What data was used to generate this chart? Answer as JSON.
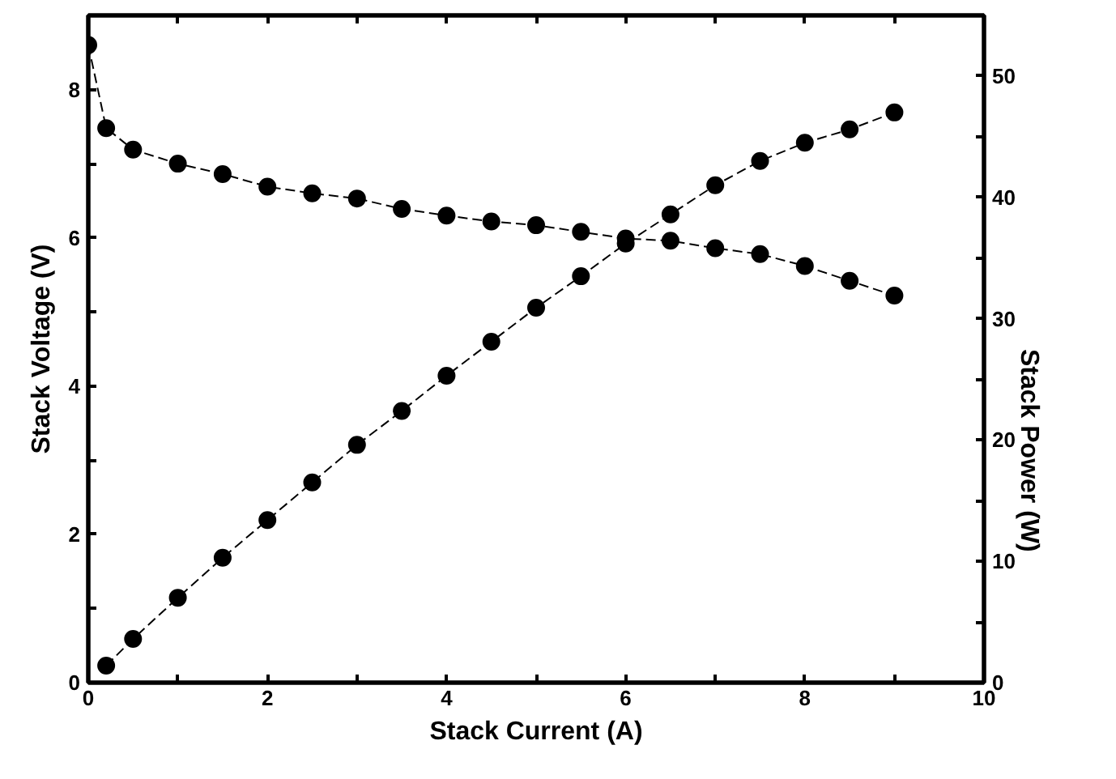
{
  "chart_data": {
    "type": "line",
    "xlabel": "Stack Current (A)",
    "ylabel": "Stack Voltage (V)",
    "y2label": "Stack Power (W)",
    "xlim": [
      0,
      10
    ],
    "xticks": [
      0,
      {
        "value": 1,
        "label": null
      },
      2,
      {
        "value": 3,
        "label": null
      },
      4,
      {
        "value": 5,
        "label": null
      },
      6,
      {
        "value": 7,
        "label": null
      },
      8,
      {
        "value": 9,
        "label": null
      },
      10
    ],
    "ylim": [
      0,
      9
    ],
    "yticks": [
      0,
      {
        "value": 1,
        "label": null
      },
      2,
      {
        "value": 3,
        "label": null
      },
      4,
      {
        "value": 5,
        "label": null
      },
      6,
      {
        "value": 7,
        "label": null
      },
      8
    ],
    "y2lim": [
      0,
      55
    ],
    "y2ticks": [
      0,
      {
        "value": 5,
        "label": null
      },
      10,
      {
        "value": 15,
        "label": null
      },
      20,
      {
        "value": 25,
        "label": null
      },
      30,
      {
        "value": 35,
        "label": null
      },
      40,
      {
        "value": 45,
        "label": null
      },
      50
    ],
    "x": [
      0,
      0.2,
      0.5,
      1,
      1.5,
      2,
      2.5,
      3,
      3.5,
      4,
      4.5,
      5,
      5.5,
      6,
      6.5,
      7,
      7.5,
      8,
      8.5,
      9
    ],
    "marker": "circle",
    "line_style": "dashed",
    "series": [
      {
        "color": "#000000",
        "values": [
          8.6,
          7.48,
          7.19,
          7.0,
          6.86,
          6.69,
          6.6,
          6.53,
          6.39,
          6.3,
          6.22,
          6.17,
          6.08,
          5.99,
          5.96,
          5.86,
          5.78,
          5.62,
          5.42,
          5.22
        ]
      },
      {
        "color": "#000000",
        "axis": "y2",
        "x": [
          0.2,
          0.5,
          1,
          1.5,
          2,
          2.5,
          3,
          3.5,
          4,
          4.5,
          5,
          5.5,
          6,
          6.5,
          7,
          7.5,
          8,
          8.5,
          9
        ],
        "values": [
          1.4,
          3.6,
          7.0,
          10.3,
          13.4,
          16.5,
          19.6,
          22.4,
          25.3,
          28.1,
          30.9,
          33.5,
          36.2,
          38.6,
          41.0,
          43.0,
          44.5,
          45.6,
          47.0
        ]
      }
    ]
  }
}
